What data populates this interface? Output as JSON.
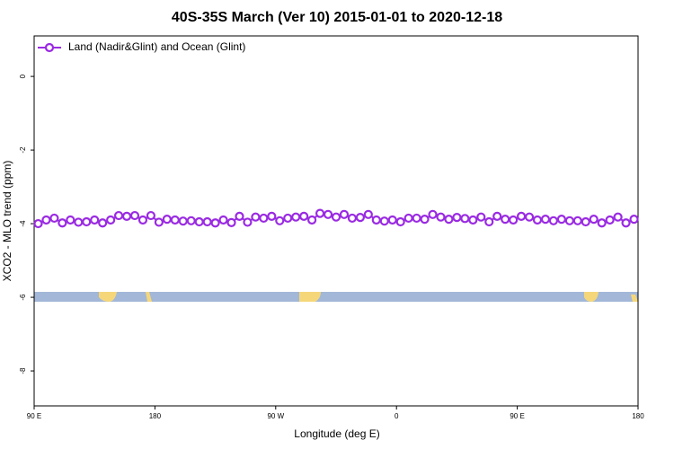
{
  "chart_data": {
    "type": "line",
    "title": "40S-35S March (Ver 10)   2015-01-01 to 2020-12-18",
    "xlabel": "Longitude (deg E)",
    "ylabel": "XCO2 - MLO trend (ppm)",
    "xlim": [
      90,
      540
    ],
    "ylim": [
      -8.95,
      1.1
    ],
    "xticks": [
      {
        "value": 90,
        "label": "90 E"
      },
      180,
      {
        "value": 270,
        "label": "90 W"
      },
      {
        "value": 360,
        "label": "0"
      },
      {
        "value": 450,
        "label": "90 E"
      },
      {
        "value": 540,
        "label": "180"
      }
    ],
    "yticks": [
      0,
      -2,
      -4,
      -6,
      -8
    ],
    "legend": "top-left",
    "x": [
      93,
      99,
      105,
      111,
      117,
      123,
      129,
      135,
      141,
      147,
      153,
      159,
      165,
      171,
      177,
      183,
      189,
      195,
      201,
      207,
      213,
      219,
      225,
      231,
      237,
      243,
      249,
      255,
      261,
      267,
      273,
      279,
      285,
      291,
      297,
      303,
      309,
      315,
      321,
      327,
      333,
      339,
      345,
      351,
      357,
      363,
      369,
      375,
      381,
      387,
      393,
      399,
      405,
      411,
      417,
      423,
      429,
      435,
      441,
      447,
      453,
      459,
      465,
      471,
      477,
      483,
      489,
      495,
      501,
      507,
      513,
      519,
      525,
      531,
      537
    ],
    "series": [
      {
        "name": "Land (Nadir&Glint) and Ocean (Glint)",
        "color": "#9a2be2",
        "values": [
          -4.0,
          -3.9,
          -3.85,
          -3.98,
          -3.9,
          -3.96,
          -3.95,
          -3.9,
          -3.98,
          -3.9,
          -3.78,
          -3.8,
          -3.78,
          -3.9,
          -3.78,
          -3.96,
          -3.88,
          -3.9,
          -3.93,
          -3.92,
          -3.95,
          -3.95,
          -3.98,
          -3.9,
          -3.97,
          -3.8,
          -3.96,
          -3.82,
          -3.85,
          -3.8,
          -3.92,
          -3.85,
          -3.82,
          -3.8,
          -3.9,
          -3.72,
          -3.75,
          -3.82,
          -3.75,
          -3.85,
          -3.83,
          -3.75,
          -3.9,
          -3.93,
          -3.9,
          -3.95,
          -3.85,
          -3.85,
          -3.88,
          -3.75,
          -3.82,
          -3.88,
          -3.83,
          -3.86,
          -3.9,
          -3.82,
          -3.95,
          -3.8,
          -3.88,
          -3.9,
          -3.8,
          -3.82,
          -3.9,
          -3.88,
          -3.92,
          -3.88,
          -3.92,
          -3.92,
          -3.95,
          -3.88,
          -3.98,
          -3.9,
          -3.82,
          -3.98,
          -3.88
        ]
      }
    ]
  }
}
